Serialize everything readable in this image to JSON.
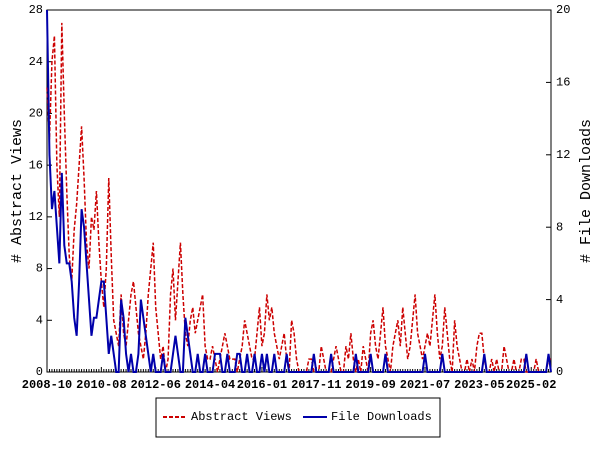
{
  "chart_data": {
    "type": "line",
    "ylabel": "# Abstract Views",
    "y2label": "# File Downloads",
    "categories": [
      "2008-10",
      null,
      null,
      null,
      null,
      null,
      null,
      null,
      null,
      null,
      null,
      null,
      null,
      null,
      null,
      null,
      null,
      null,
      null,
      null,
      null,
      null,
      "2010-08",
      null,
      null,
      null,
      null,
      null,
      null,
      null,
      null,
      null,
      null,
      null,
      null,
      null,
      null,
      null,
      null,
      null,
      null,
      null,
      null,
      null,
      "2012-06",
      null,
      null,
      null,
      null,
      null,
      null,
      null,
      null,
      null,
      null,
      null,
      null,
      null,
      null,
      null,
      null,
      null,
      null,
      null,
      null,
      null,
      "2014-04",
      null,
      null,
      null,
      null,
      null,
      null,
      null,
      null,
      null,
      null,
      null,
      null,
      null,
      null,
      null,
      null,
      null,
      null,
      null,
      null,
      "2016-01",
      null,
      null,
      null,
      null,
      null,
      null,
      null,
      null,
      null,
      null,
      null,
      null,
      null,
      null,
      null,
      null,
      null,
      null,
      null,
      null,
      null,
      "2017-11",
      null,
      null,
      null,
      null,
      null,
      null,
      null,
      null,
      null,
      null,
      null,
      null,
      null,
      null,
      null,
      null,
      null,
      null,
      null,
      null,
      null,
      "2019-09",
      null,
      null,
      null,
      null,
      null,
      null,
      null,
      null,
      null,
      null,
      null,
      null,
      null,
      null,
      null,
      null,
      null,
      null,
      null,
      null,
      null,
      "2021-07",
      null,
      null,
      null,
      null,
      null,
      null,
      null,
      null,
      null,
      null,
      null,
      null,
      null,
      null,
      null,
      null,
      null,
      null,
      null,
      null,
      null,
      "2023-05",
      null,
      null,
      null,
      null,
      null,
      null,
      null,
      null,
      null,
      null,
      null,
      null,
      null,
      null,
      null,
      null,
      null,
      null,
      null,
      null,
      "2025-02",
      null,
      null,
      null,
      null,
      null,
      null,
      null,
      null
    ],
    "series": [
      {
        "name": "Abstract Views",
        "color": "#cc0000",
        "dash": true,
        "axis": "y",
        "values": [
          22,
          18,
          24,
          26,
          16,
          12,
          27,
          20,
          14,
          9,
          7,
          11,
          13,
          16,
          19,
          15,
          10,
          8,
          12,
          11,
          14,
          10,
          7,
          5,
          8,
          15,
          9,
          4,
          3,
          2,
          6,
          3,
          2,
          4,
          6,
          7,
          5,
          3,
          2,
          1,
          3,
          6,
          8,
          10,
          5,
          3,
          1,
          2,
          0,
          1,
          6,
          8,
          4,
          7,
          10,
          6,
          3,
          2,
          4,
          5,
          3,
          4,
          5,
          6,
          2,
          1,
          1,
          2,
          1,
          0,
          1,
          2,
          3,
          2,
          1,
          1,
          1,
          0,
          1,
          2,
          4,
          3,
          2,
          1,
          1,
          3,
          5,
          2,
          3,
          6,
          4,
          5,
          3,
          2,
          1,
          2,
          3,
          1,
          0,
          4,
          3,
          1,
          0,
          0,
          0,
          0,
          1,
          1,
          0,
          0,
          0,
          2,
          1,
          0,
          0,
          0,
          1,
          2,
          1,
          0,
          0,
          2,
          1,
          3,
          1,
          0,
          1,
          0,
          2,
          1,
          0,
          3,
          4,
          2,
          1,
          3,
          5,
          2,
          1,
          0,
          2,
          3,
          4,
          2,
          5,
          3,
          1,
          2,
          4,
          6,
          3,
          2,
          1,
          2,
          3,
          2,
          4,
          6,
          3,
          1,
          2,
          5,
          3,
          1,
          0,
          4,
          2,
          1,
          0,
          0,
          1,
          0,
          1,
          0,
          2,
          3,
          3,
          1,
          0,
          0,
          1,
          0,
          1,
          0,
          0,
          2,
          1,
          0,
          0,
          1,
          0,
          0,
          1,
          1,
          0,
          0,
          0,
          0,
          1,
          0,
          0,
          0,
          0,
          1,
          1
        ]
      },
      {
        "name": "File Downloads",
        "color": "#0000aa",
        "dash": false,
        "axis": "y2",
        "values": [
          20,
          12,
          9,
          10,
          8,
          6,
          11,
          7,
          6,
          6,
          5,
          3,
          2,
          5,
          9,
          8,
          6,
          4,
          2,
          3,
          3,
          4,
          5,
          5,
          3,
          1,
          2,
          1,
          0,
          0,
          4,
          3,
          1,
          0,
          1,
          0,
          0,
          1,
          4,
          3,
          2,
          1,
          0,
          1,
          0,
          0,
          0,
          1,
          0,
          0,
          0,
          1,
          2,
          1,
          0,
          0,
          3,
          2,
          1,
          0,
          0,
          1,
          0,
          0,
          1,
          0,
          0,
          0,
          1,
          1,
          1,
          0,
          0,
          1,
          0,
          0,
          0,
          1,
          1,
          0,
          0,
          1,
          0,
          0,
          1,
          0,
          0,
          1,
          0,
          1,
          0,
          0,
          1,
          0,
          0,
          0,
          0,
          1,
          0,
          0,
          0,
          0,
          0,
          0,
          0,
          0,
          0,
          0,
          1,
          0,
          0,
          0,
          0,
          0,
          0,
          1,
          0,
          0,
          0,
          0,
          0,
          0,
          0,
          0,
          0,
          1,
          0,
          0,
          0,
          0,
          0,
          1,
          0,
          0,
          0,
          0,
          0,
          1,
          0,
          0,
          0,
          0,
          0,
          0,
          0,
          0,
          0,
          0,
          0,
          0,
          0,
          0,
          0,
          1,
          0,
          0,
          0,
          0,
          0,
          0,
          1,
          0,
          0,
          0,
          0,
          0,
          0,
          0,
          0,
          0,
          0,
          0,
          0,
          0,
          0,
          0,
          0,
          1,
          0,
          0,
          0,
          0,
          0,
          0,
          0,
          0,
          0,
          0,
          0,
          0,
          0,
          0,
          0,
          0,
          1,
          0,
          0,
          0,
          0,
          0,
          0,
          0,
          0,
          1,
          0
        ]
      }
    ],
    "ylim": [
      0,
      28
    ],
    "yticks": [
      0,
      4,
      8,
      12,
      16,
      20,
      24,
      28
    ],
    "y2lim": [
      0,
      20
    ],
    "y2ticks": [
      0,
      4,
      8,
      12,
      16,
      20
    ],
    "grid": false
  }
}
